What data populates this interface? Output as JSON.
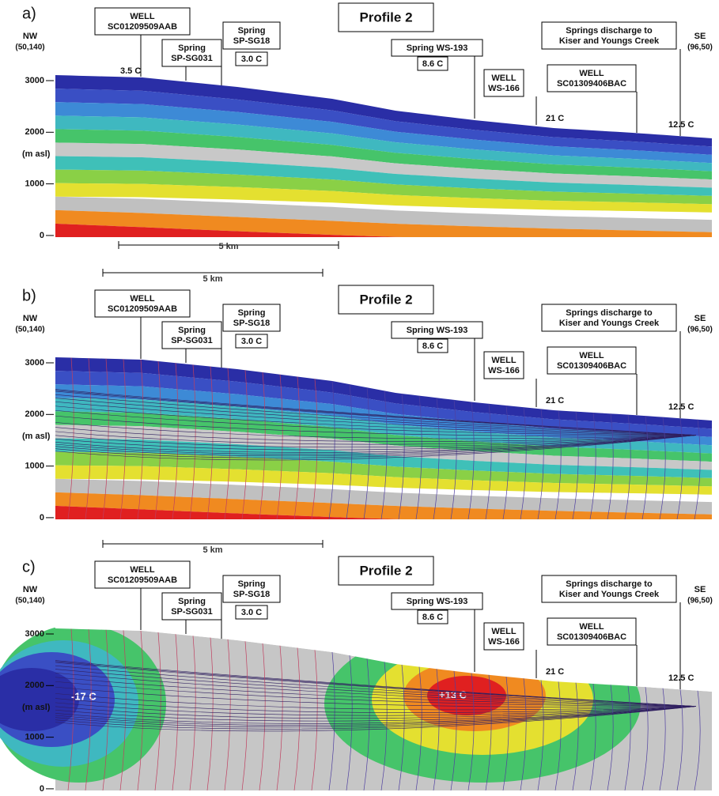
{
  "panels": [
    {
      "label": "a)",
      "title": "Profile 2",
      "nw": "NW",
      "nw_coord": "(50,140)",
      "se": "SE",
      "se_coord": "(96,50)",
      "y_unit": "(m asl)",
      "y_ticks": [
        "3000",
        "2000",
        "1000",
        "0"
      ],
      "scale": "5 km",
      "callouts": [
        {
          "lines": [
            "WELL",
            "SC01209509AAB"
          ]
        },
        {
          "lines": [
            "Spring",
            "SP-SG031"
          ]
        },
        {
          "lines": [
            "Spring",
            "SP-SG18"
          ],
          "temp": "3.0 C"
        },
        {
          "lines": [
            "Spring WS-193"
          ],
          "temp": "8.6 C"
        },
        {
          "lines": [
            "WELL",
            "WS-166"
          ]
        },
        {
          "lines": [
            "WELL",
            "SC01309406BAC"
          ]
        },
        {
          "lines": [
            "Springs discharge to",
            "Kiser and Youngs Creek"
          ]
        }
      ],
      "point_temps": [
        "3.5 C",
        "21 C",
        "12.5 C"
      ]
    },
    {
      "label": "b)",
      "title": "Profile 2",
      "nw": "NW",
      "nw_coord": "(50,140)",
      "se": "SE",
      "se_coord": "(96,50)",
      "y_unit": "(m asl)",
      "y_ticks": [
        "3000",
        "2000",
        "1000",
        "0"
      ],
      "scale": "5 km",
      "callouts": [
        {
          "lines": [
            "WELL",
            "SC01209509AAB"
          ]
        },
        {
          "lines": [
            "Spring",
            "SP-SG031"
          ]
        },
        {
          "lines": [
            "Spring",
            "SP-SG18"
          ],
          "temp": "3.0 C"
        },
        {
          "lines": [
            "Spring WS-193"
          ],
          "temp": "8.6 C"
        },
        {
          "lines": [
            "WELL",
            "WS-166"
          ]
        },
        {
          "lines": [
            "WELL",
            "SC01309406BAC"
          ]
        },
        {
          "lines": [
            "Springs discharge to",
            "Kiser and Youngs Creek"
          ]
        }
      ],
      "point_temps": [
        "21 C",
        "12.5 C"
      ]
    },
    {
      "label": "c)",
      "title": "Profile 2",
      "nw": "NW",
      "nw_coord": "(50,140)",
      "se": "SE",
      "se_coord": "(96,50)",
      "y_unit": "(m asl)",
      "y_ticks": [
        "3000",
        "2000",
        "1000",
        "0"
      ],
      "scale": "5 km",
      "callouts": [
        {
          "lines": [
            "WELL",
            "SC01209509AAB"
          ]
        },
        {
          "lines": [
            "Spring",
            "SP-SG031"
          ]
        },
        {
          "lines": [
            "Spring",
            "SP-SG18"
          ],
          "temp": "3.0 C"
        },
        {
          "lines": [
            "Spring WS-193"
          ],
          "temp": "8.6 C"
        },
        {
          "lines": [
            "WELL",
            "WS-166"
          ]
        },
        {
          "lines": [
            "WELL",
            "SC01309406BAC"
          ]
        },
        {
          "lines": [
            "Springs discharge to",
            "Kiser and Youngs Creek"
          ]
        }
      ],
      "point_temps": [
        "21 C",
        "12.5 C"
      ],
      "zone_temps": [
        "-17 C",
        "+13 C"
      ]
    }
  ]
}
